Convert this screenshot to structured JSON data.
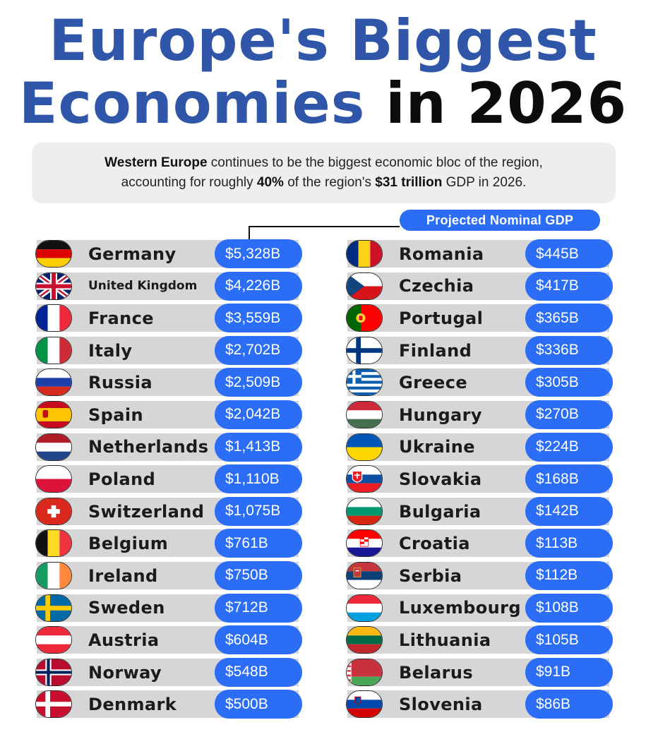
{
  "title": {
    "line1": "Europe's Biggest",
    "line2_blue": "Economies",
    "line2_black": "in 2026"
  },
  "intro": {
    "p1_bold": "Western Europe",
    "p1_rest": " continues to be the biggest economic bloc of the region,",
    "p2_a": "accounting for roughly ",
    "p2_b": "40%",
    "p2_c": " of the region's ",
    "p2_d": "$31 trillion",
    "p2_e": " GDP in 2026."
  },
  "legend_label": "Projected Nominal GDP",
  "chart_data": {
    "type": "table",
    "title": "Europe's Biggest Economies in 2026",
    "unit": "Projected Nominal GDP",
    "columns": [
      [
        {
          "country": "Germany",
          "value": 5328,
          "label": "$5,328B",
          "flag": "germany-flag"
        },
        {
          "country": "United Kingdom",
          "value": 4226,
          "label": "$4,226B",
          "flag": "uk-flag"
        },
        {
          "country": "France",
          "value": 3559,
          "label": "$3,559B",
          "flag": "france-flag"
        },
        {
          "country": "Italy",
          "value": 2702,
          "label": "$2,702B",
          "flag": "italy-flag"
        },
        {
          "country": "Russia",
          "value": 2509,
          "label": "$2,509B",
          "flag": "russia-flag"
        },
        {
          "country": "Spain",
          "value": 2042,
          "label": "$2,042B",
          "flag": "spain-flag"
        },
        {
          "country": "Netherlands",
          "value": 1413,
          "label": "$1,413B",
          "flag": "netherlands-flag"
        },
        {
          "country": "Poland",
          "value": 1110,
          "label": "$1,110B",
          "flag": "poland-flag"
        },
        {
          "country": "Switzerland",
          "value": 1075,
          "label": "$1,075B",
          "flag": "switzerland-flag"
        },
        {
          "country": "Belgium",
          "value": 761,
          "label": "$761B",
          "flag": "belgium-flag"
        },
        {
          "country": "Ireland",
          "value": 750,
          "label": "$750B",
          "flag": "ireland-flag"
        },
        {
          "country": "Sweden",
          "value": 712,
          "label": "$712B",
          "flag": "sweden-flag"
        },
        {
          "country": "Austria",
          "value": 604,
          "label": "$604B",
          "flag": "austria-flag"
        },
        {
          "country": "Norway",
          "value": 548,
          "label": "$548B",
          "flag": "norway-flag"
        },
        {
          "country": "Denmark",
          "value": 500,
          "label": "$500B",
          "flag": "denmark-flag"
        }
      ],
      [
        {
          "country": "Romania",
          "value": 445,
          "label": "$445B",
          "flag": "romania-flag"
        },
        {
          "country": "Czechia",
          "value": 417,
          "label": "$417B",
          "flag": "czechia-flag"
        },
        {
          "country": "Portugal",
          "value": 365,
          "label": "$365B",
          "flag": "portugal-flag"
        },
        {
          "country": "Finland",
          "value": 336,
          "label": "$336B",
          "flag": "finland-flag"
        },
        {
          "country": "Greece",
          "value": 305,
          "label": "$305B",
          "flag": "greece-flag"
        },
        {
          "country": "Hungary",
          "value": 270,
          "label": "$270B",
          "flag": "hungary-flag"
        },
        {
          "country": "Ukraine",
          "value": 224,
          "label": "$224B",
          "flag": "ukraine-flag"
        },
        {
          "country": "Slovakia",
          "value": 168,
          "label": "$168B",
          "flag": "slovakia-flag"
        },
        {
          "country": "Bulgaria",
          "value": 142,
          "label": "$142B",
          "flag": "bulgaria-flag"
        },
        {
          "country": "Croatia",
          "value": 113,
          "label": "$113B",
          "flag": "croatia-flag"
        },
        {
          "country": "Serbia",
          "value": 112,
          "label": "$112B",
          "flag": "serbia-flag"
        },
        {
          "country": "Luxembourg",
          "value": 108,
          "label": "$108B",
          "flag": "luxembourg-flag"
        },
        {
          "country": "Lithuania",
          "value": 105,
          "label": "$105B",
          "flag": "lithuania-flag"
        },
        {
          "country": "Belarus",
          "value": 91,
          "label": "$91B",
          "flag": "belarus-flag"
        },
        {
          "country": "Slovenia",
          "value": 86,
          "label": "$86B",
          "flag": "slovenia-flag"
        }
      ]
    ]
  }
}
